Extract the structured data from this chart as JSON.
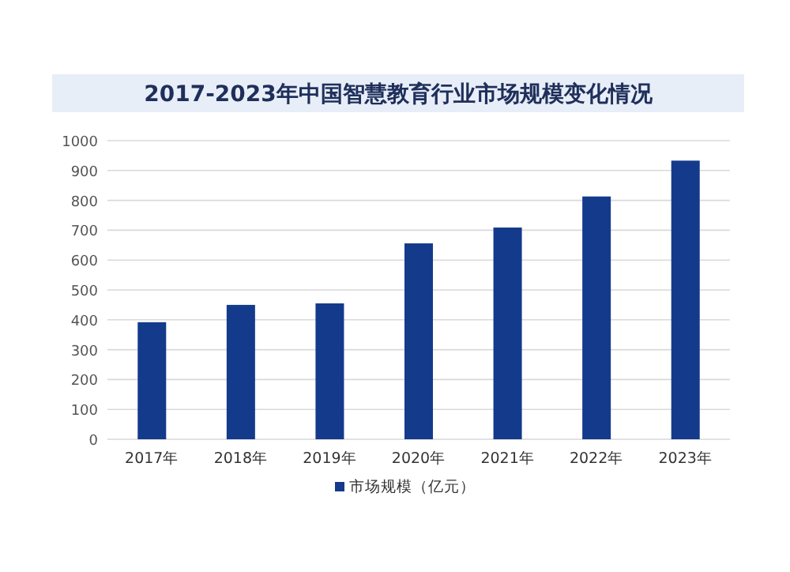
{
  "chart_data": {
    "type": "bar",
    "title": "2017-2023年中国智慧教育行业市场规模变化情况",
    "categories": [
      "2017年",
      "2018年",
      "2019年",
      "2020年",
      "2021年",
      "2022年",
      "2023年"
    ],
    "series": [
      {
        "name": "市场规模（亿元）",
        "color": "#143a8c",
        "values": [
          392,
          450,
          455,
          656,
          709,
          813,
          933
        ]
      }
    ],
    "ylim": [
      0,
      1000
    ],
    "yticks": [
      0,
      100,
      200,
      300,
      400,
      500,
      600,
      700,
      800,
      900,
      1000
    ],
    "grid": "y",
    "legend": "bottom"
  }
}
